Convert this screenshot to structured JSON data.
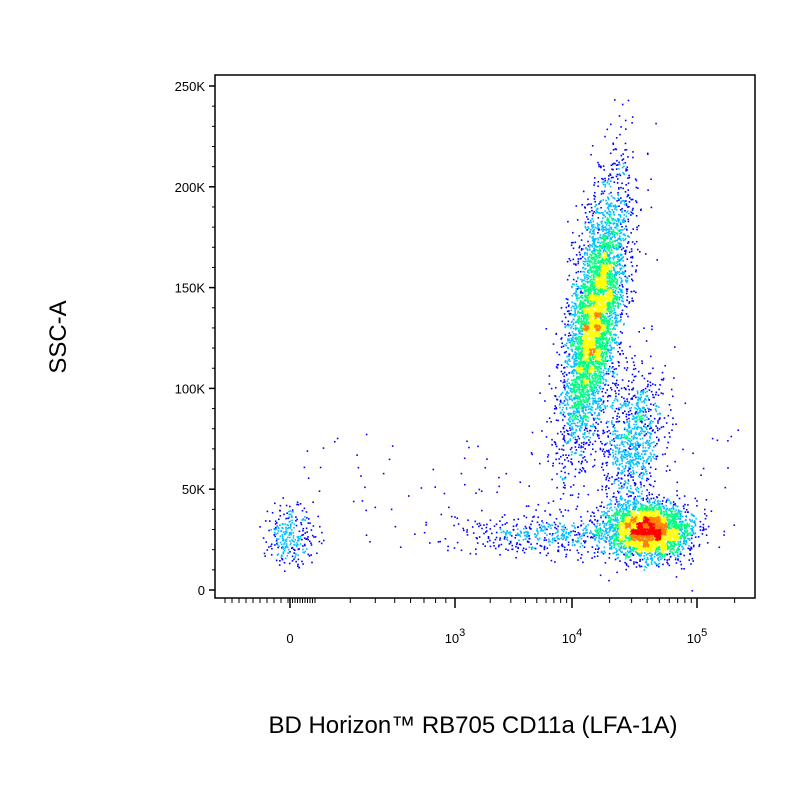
{
  "chart_data": {
    "type": "scatter",
    "subtype": "flow-cytometry-pseudocolor-density",
    "xlabel": "BD Horizon™ RB705  CD11a (LFA-1A)",
    "ylabel": "SSC-A",
    "x_scale": "biexponential",
    "x_ticks": [
      {
        "value": 0,
        "base": "0",
        "exp": ""
      },
      {
        "value": 1000,
        "base": "10",
        "exp": "3"
      },
      {
        "value": 10000,
        "base": "10",
        "exp": "4"
      },
      {
        "value": 100000,
        "base": "10",
        "exp": "5"
      }
    ],
    "y_ticks": [
      {
        "value": 0,
        "label": "0"
      },
      {
        "value": 50000,
        "label": "50K"
      },
      {
        "value": 100000,
        "label": "100K"
      },
      {
        "value": 150000,
        "label": "150K"
      },
      {
        "value": 200000,
        "label": "200K"
      },
      {
        "value": 250000,
        "label": "250K"
      }
    ],
    "ylim": [
      0,
      262144
    ],
    "grid": false,
    "legend": "none",
    "colormap": [
      "#0000ff",
      "#00bfff",
      "#00ff80",
      "#ffff00",
      "#ff8000",
      "#ff0000"
    ],
    "populations": [
      {
        "cd11a_center": 15000,
        "ssc_center": 135000,
        "cd11a_spread_decades": 0.1,
        "ssc_spread": 32000,
        "tilt": -0.5,
        "relative_size": 0.5
      },
      {
        "cd11a_center": 40000,
        "ssc_center": 30000,
        "cd11a_spread_decades": 0.17,
        "ssc_spread": 7000,
        "tilt": 0.2,
        "relative_size": 0.32
      },
      {
        "cd11a_center": 30000,
        "ssc_center": 75000,
        "cd11a_spread_decades": 0.12,
        "ssc_spread": 18000,
        "tilt": -0.3,
        "relative_size": 0.1
      },
      {
        "cd11a_center": 6000,
        "ssc_center": 28000,
        "cd11a_spread_decades": 0.35,
        "ssc_spread": 5000,
        "tilt": 0,
        "relative_size": 0.05
      },
      {
        "cd11a_center": 0,
        "ssc_center": 27000,
        "cd11a_spread_decades": 0.05,
        "ssc_spread": 7000,
        "tilt": 0,
        "relative_size": 0.03
      }
    ]
  }
}
